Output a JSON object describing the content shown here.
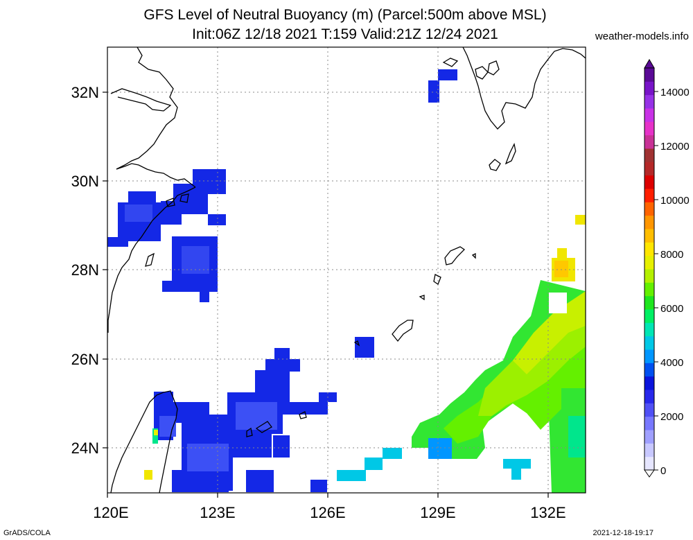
{
  "title": {
    "line1": "GFS Level of Neutral Buoyancy (m) (Parcel:500m above MSL)",
    "line2": "Init:06Z 12/18 2021 T:159 Valid:21Z 12/24 2021"
  },
  "source": "weather-models.info",
  "footer": {
    "left": "GrADS/COLA",
    "right": "2021-12-18-19:17"
  },
  "map": {
    "lon_range": [
      120,
      133
    ],
    "lat_range": [
      23,
      33
    ],
    "lat_labels": [
      "32N",
      "30N",
      "28N",
      "26N",
      "24N"
    ],
    "lon_labels": [
      "120E",
      "123E",
      "126E",
      "129E",
      "132E"
    ],
    "grid": "dotted"
  },
  "colorbar": {
    "unit": "m",
    "ticks": [
      "14000",
      "12000",
      "10000",
      "8000",
      "6000",
      "4000",
      "2000",
      "0"
    ],
    "colors": [
      "#e6e6ff",
      "#c8c8ff",
      "#a0a0ff",
      "#7878ff",
      "#5050f5",
      "#2828eb",
      "#0a14dc",
      "#0050f0",
      "#0096ff",
      "#00c8e6",
      "#00e6b4",
      "#00f064",
      "#1ee61e",
      "#64f000",
      "#b4f000",
      "#e6f000",
      "#ffe600",
      "#ffbe00",
      "#ff9600",
      "#ff6400",
      "#ff1e00",
      "#dc0000",
      "#b42828",
      "#a03232",
      "#c83296",
      "#e632c8",
      "#c832e6",
      "#9632e6",
      "#7814c8",
      "#5a0a96"
    ]
  },
  "features": {
    "regions": [
      {
        "id": "blue-fields",
        "level_m": 1800
      },
      {
        "id": "green-yellow-band",
        "level_m": 5500
      },
      {
        "id": "yellow-patches",
        "level_m": 7200
      }
    ]
  }
}
